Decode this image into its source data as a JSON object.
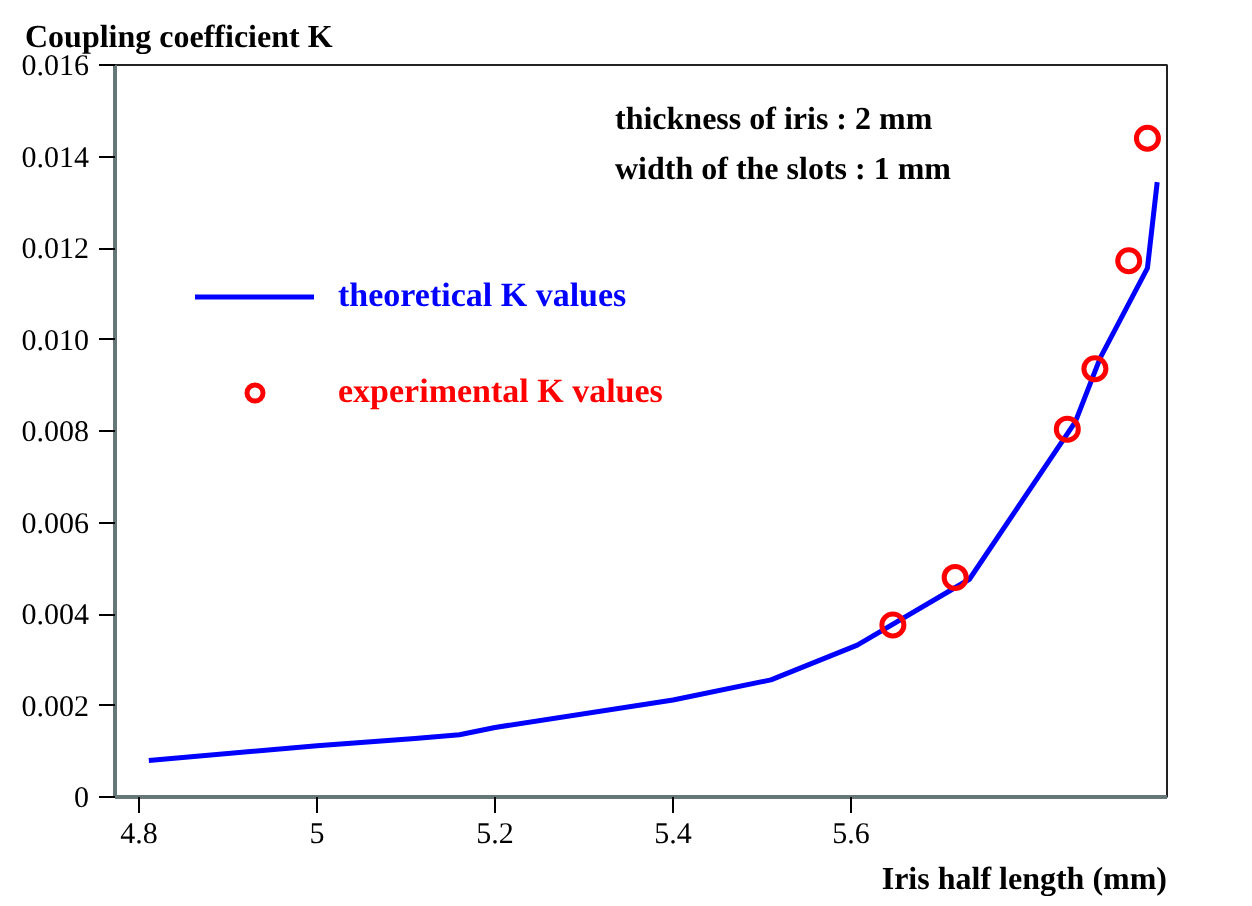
{
  "chart_data": {
    "type": "line",
    "ylabel": "Coupling coefficient K",
    "xlabel": "Iris half length (mm)",
    "annotations": [
      "thickness of iris    : 2 mm",
      "width of the slots  : 1 mm"
    ],
    "xlim": [
      4.773,
      5.955
    ],
    "ylim": [
      0,
      0.016
    ],
    "xticks": [
      4.8,
      5,
      5.2,
      5.4,
      5.6
    ],
    "yticks": [
      0,
      0.002,
      0.004,
      0.006,
      0.008,
      {
        "value": 0.01,
        "label": "0.010"
      },
      0.012,
      0.014,
      0.016
    ],
    "grid": false,
    "legend": "left",
    "series": [
      {
        "name": "theoretical K values",
        "color": "#0000ff",
        "marker": "none",
        "line_style": "solid",
        "x": [
          4.811,
          5.0,
          5.11,
          5.16,
          5.2,
          5.4,
          5.51,
          5.607,
          5.733,
          5.852,
          5.88,
          5.933,
          5.944
        ],
        "values": [
          0.0008,
          0.00112,
          0.00128,
          0.00136,
          0.00152,
          0.00212,
          0.00256,
          0.00332,
          0.00476,
          0.0082,
          0.0096,
          0.01156,
          0.01344
        ]
      },
      {
        "name": "experimental K values",
        "type": "scatter",
        "color": "#ff0000",
        "marker": "circle",
        "x": [
          5.647,
          5.717,
          5.843,
          5.874,
          5.912,
          5.933
        ],
        "values": [
          0.00376,
          0.0048,
          0.00804,
          0.00936,
          0.01172,
          0.0144
        ]
      }
    ]
  }
}
